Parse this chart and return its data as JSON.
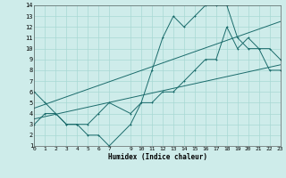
{
  "xlabel": "Humidex (Indice chaleur)",
  "background_color": "#ceecea",
  "grid_color": "#a8d8d4",
  "line_color": "#1a6b6b",
  "xlim": [
    0,
    23
  ],
  "ylim": [
    1,
    14
  ],
  "xtick_labels": [
    "0",
    "1",
    "2",
    "3",
    "4",
    "5",
    "6",
    "7",
    "9",
    "10",
    "11",
    "12",
    "13",
    "14",
    "15",
    "16",
    "17",
    "18",
    "19",
    "20",
    "21",
    "22",
    "23"
  ],
  "xtick_pos": [
    0,
    1,
    2,
    3,
    4,
    5,
    6,
    7,
    9,
    10,
    11,
    12,
    13,
    14,
    15,
    16,
    17,
    18,
    19,
    20,
    21,
    22,
    23
  ],
  "ytick_labels": [
    "1",
    "2",
    "3",
    "4",
    "5",
    "6",
    "7",
    "8",
    "9",
    "10",
    "11",
    "12",
    "13",
    "14"
  ],
  "ytick_pos": [
    1,
    2,
    3,
    4,
    5,
    6,
    7,
    8,
    9,
    10,
    11,
    12,
    13,
    14
  ],
  "line1_x": [
    0,
    1,
    2,
    3,
    4,
    5,
    6,
    7,
    9,
    10,
    11,
    12,
    13,
    14,
    15,
    16,
    17,
    18,
    19,
    20,
    21,
    22,
    23
  ],
  "line1_y": [
    6,
    5,
    4,
    3,
    3,
    2,
    2,
    1,
    3,
    5,
    8,
    11,
    13,
    12,
    13,
    14,
    14,
    14,
    11,
    10,
    10,
    10,
    9
  ],
  "line2_x": [
    0,
    1,
    2,
    3,
    4,
    5,
    6,
    7,
    9,
    10,
    11,
    12,
    13,
    14,
    15,
    16,
    17,
    18,
    19,
    20,
    21,
    22,
    23
  ],
  "line2_y": [
    3,
    4,
    4,
    3,
    3,
    3,
    4,
    5,
    4,
    5,
    5,
    6,
    6,
    7,
    8,
    9,
    9,
    12,
    10,
    11,
    10,
    8,
    8
  ],
  "line3_x": [
    0,
    23
  ],
  "line3_y": [
    3.5,
    8.5
  ],
  "line4_x": [
    0,
    23
  ],
  "line4_y": [
    4.5,
    12.5
  ]
}
